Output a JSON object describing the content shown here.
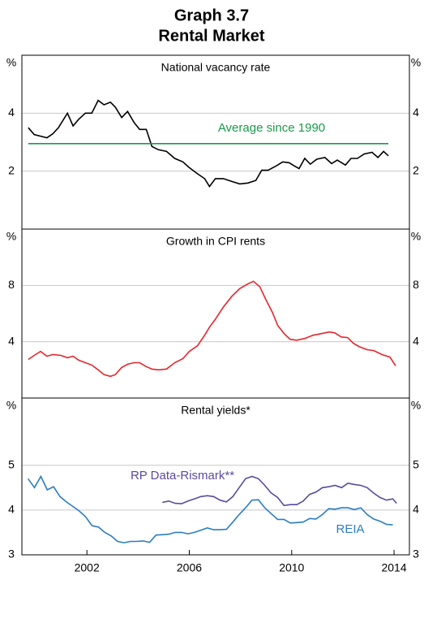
{
  "title": "Graph 3.7",
  "subtitle": "Rental Market",
  "chart_data": [
    {
      "type": "line",
      "title": "National vacancy rate",
      "unit": "%",
      "xlim": [
        1999.46,
        2014.6
      ],
      "ylim": [
        0,
        6
      ],
      "yticks": [
        2,
        4
      ],
      "grid": true,
      "series": [
        {
          "color": "#000000",
          "x": [
            1999.71,
            1999.94,
            2000.44,
            2000.67,
            2000.89,
            2001.24,
            2001.46,
            2001.68,
            2001.94,
            2002.19,
            2002.44,
            2002.67,
            2002.92,
            2003.11,
            2003.36,
            2003.59,
            2003.84,
            2004.06,
            2004.32,
            2004.54,
            2004.79,
            2005.11,
            2005.43,
            2005.75,
            2006.0,
            2006.32,
            2006.6,
            2006.79,
            2007.02,
            2007.33,
            2007.65,
            2007.97,
            2008.29,
            2008.6,
            2008.83,
            2009.08,
            2009.4,
            2009.65,
            2009.9,
            2010.1,
            2010.29,
            2010.51,
            2010.73,
            2010.98,
            2011.3,
            2011.56,
            2011.78,
            2012.1,
            2012.32,
            2012.57,
            2012.83,
            2013.14,
            2013.37,
            2013.59,
            2013.78
          ],
          "values": [
            3.5,
            3.26,
            3.15,
            3.29,
            3.5,
            4.0,
            3.56,
            3.79,
            4.0,
            4.0,
            4.44,
            4.29,
            4.38,
            4.21,
            3.85,
            4.06,
            3.68,
            3.44,
            3.44,
            2.85,
            2.74,
            2.68,
            2.44,
            2.32,
            2.12,
            1.91,
            1.74,
            1.47,
            1.74,
            1.74,
            1.65,
            1.56,
            1.59,
            1.68,
            2.03,
            2.03,
            2.18,
            2.32,
            2.29,
            2.18,
            2.09,
            2.44,
            2.24,
            2.41,
            2.47,
            2.26,
            2.38,
            2.21,
            2.44,
            2.44,
            2.59,
            2.65,
            2.47,
            2.68,
            2.53
          ]
        },
        {
          "name": "Average since 1990",
          "color": "#1a9a4a",
          "x": [
            1999.71,
            2013.78
          ],
          "values": [
            2.95,
            2.95
          ]
        }
      ]
    },
    {
      "type": "line",
      "title": "Growth in CPI rents",
      "unit": "%",
      "xlim": [
        1999.46,
        2014.6
      ],
      "ylim": [
        0,
        12
      ],
      "yticks": [
        4,
        8
      ],
      "grid": true,
      "series": [
        {
          "color": "#e3262c",
          "x": [
            1999.71,
            1999.94,
            2000.19,
            2000.44,
            2000.67,
            2000.98,
            2001.24,
            2001.46,
            2001.68,
            2001.94,
            2002.19,
            2002.44,
            2002.67,
            2002.92,
            2003.11,
            2003.36,
            2003.59,
            2003.84,
            2004.06,
            2004.32,
            2004.54,
            2004.79,
            2005.11,
            2005.43,
            2005.75,
            2006.0,
            2006.32,
            2006.6,
            2006.79,
            2007.02,
            2007.33,
            2007.65,
            2007.97,
            2008.29,
            2008.51,
            2008.76,
            2008.98,
            2009.24,
            2009.46,
            2009.71,
            2009.94,
            2010.19,
            2010.51,
            2010.83,
            2011.14,
            2011.46,
            2011.68,
            2011.94,
            2012.19,
            2012.41,
            2012.63,
            2012.95,
            2013.21,
            2013.52,
            2013.84,
            2014.06
          ],
          "values": [
            2.74,
            3.03,
            3.31,
            2.97,
            3.09,
            3.03,
            2.86,
            2.97,
            2.69,
            2.51,
            2.34,
            2.0,
            1.66,
            1.54,
            1.66,
            2.17,
            2.4,
            2.51,
            2.51,
            2.23,
            2.06,
            2.0,
            2.06,
            2.51,
            2.8,
            3.31,
            3.71,
            4.46,
            5.03,
            5.6,
            6.46,
            7.2,
            7.77,
            8.11,
            8.29,
            7.89,
            7.03,
            6.11,
            5.14,
            4.57,
            4.17,
            4.11,
            4.23,
            4.46,
            4.57,
            4.69,
            4.63,
            4.34,
            4.29,
            3.89,
            3.66,
            3.43,
            3.37,
            3.09,
            2.91,
            2.29
          ]
        }
      ]
    },
    {
      "type": "line",
      "title": "Rental yields*",
      "unit": "%",
      "xlim": [
        1999.46,
        2014.6
      ],
      "ylim": [
        3,
        6.5
      ],
      "yticks": [
        3,
        4,
        5
      ],
      "grid": true,
      "xticks": [
        2002,
        2006,
        2010,
        2014
      ],
      "series": [
        {
          "name": "RP Data-Rismark**",
          "color": "#5b4a9e",
          "x": [
            2004.95,
            2005.2,
            2005.45,
            2005.7,
            2005.95,
            2006.2,
            2006.45,
            2006.7,
            2006.95,
            2007.2,
            2007.45,
            2007.7,
            2007.95,
            2008.2,
            2008.45,
            2008.7,
            2008.95,
            2009.2,
            2009.45,
            2009.7,
            2009.95,
            2010.2,
            2010.45,
            2010.7,
            2010.95,
            2011.2,
            2011.45,
            2011.7,
            2011.95,
            2012.2,
            2012.45,
            2012.7,
            2012.95,
            2013.2,
            2013.45,
            2013.7,
            2013.95,
            2014.1
          ],
          "values": [
            4.17,
            4.2,
            4.15,
            4.14,
            4.2,
            4.25,
            4.3,
            4.32,
            4.3,
            4.22,
            4.18,
            4.3,
            4.5,
            4.7,
            4.75,
            4.7,
            4.55,
            4.38,
            4.28,
            4.1,
            4.12,
            4.12,
            4.2,
            4.35,
            4.4,
            4.5,
            4.52,
            4.55,
            4.5,
            4.6,
            4.57,
            4.55,
            4.5,
            4.38,
            4.28,
            4.22,
            4.25,
            4.15
          ]
        },
        {
          "name": "REIA",
          "color": "#2a7dc1",
          "x": [
            1999.7,
            1999.95,
            2000.2,
            2000.45,
            2000.7,
            2000.95,
            2001.2,
            2001.45,
            2001.7,
            2001.95,
            2002.2,
            2002.45,
            2002.7,
            2002.95,
            2003.2,
            2003.45,
            2003.7,
            2003.95,
            2004.2,
            2004.45,
            2004.7,
            2004.95,
            2005.2,
            2005.45,
            2005.7,
            2005.95,
            2006.2,
            2006.45,
            2006.7,
            2006.95,
            2007.2,
            2007.45,
            2007.7,
            2007.95,
            2008.2,
            2008.45,
            2008.7,
            2008.95,
            2009.2,
            2009.45,
            2009.7,
            2009.95,
            2010.2,
            2010.45,
            2010.7,
            2010.95,
            2011.2,
            2011.45,
            2011.7,
            2011.95,
            2012.2,
            2012.45,
            2012.7,
            2012.95,
            2013.2,
            2013.45,
            2013.7,
            2013.95
          ],
          "values": [
            4.7,
            4.5,
            4.75,
            4.45,
            4.52,
            4.3,
            4.18,
            4.08,
            3.98,
            3.85,
            3.65,
            3.62,
            3.5,
            3.42,
            3.3,
            3.27,
            3.3,
            3.3,
            3.31,
            3.28,
            3.44,
            3.45,
            3.46,
            3.5,
            3.5,
            3.47,
            3.5,
            3.55,
            3.6,
            3.56,
            3.56,
            3.57,
            3.73,
            3.9,
            4.05,
            4.22,
            4.23,
            4.05,
            3.92,
            3.79,
            3.79,
            3.71,
            3.72,
            3.73,
            3.81,
            3.8,
            3.9,
            4.03,
            4.02,
            4.05,
            4.05,
            4.01,
            4.05,
            3.9,
            3.8,
            3.75,
            3.68,
            3.67
          ]
        }
      ]
    }
  ]
}
